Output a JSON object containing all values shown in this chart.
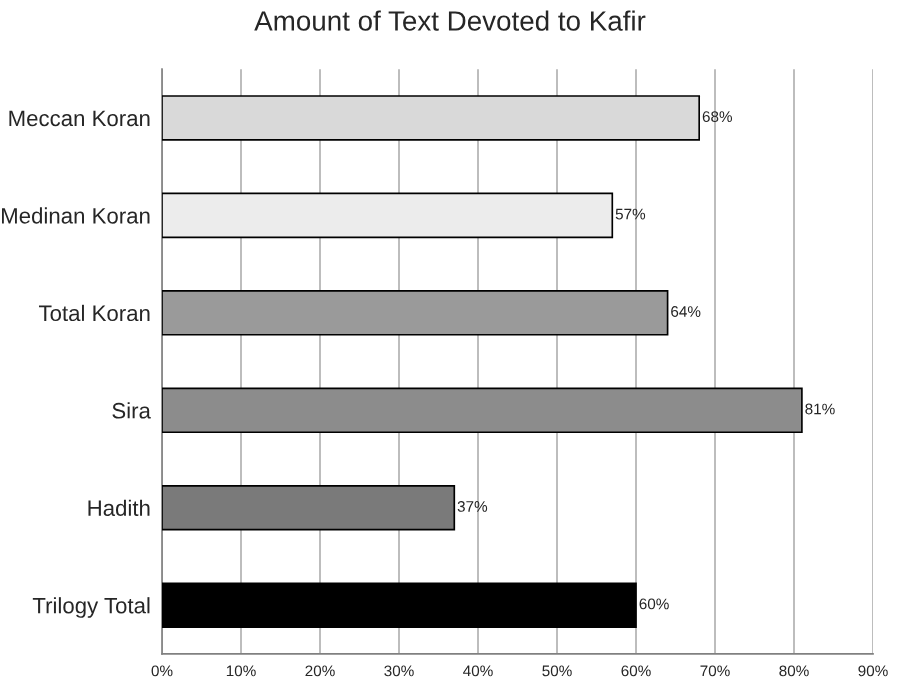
{
  "chart_data": {
    "type": "bar",
    "orientation": "horizontal",
    "title": "Amount of Text Devoted to Kafir",
    "categories": [
      "Meccan Koran",
      "Medinan Koran",
      "Total Koran",
      "Sira",
      "Hadith",
      "Trilogy Total"
    ],
    "values": [
      68,
      57,
      64,
      81,
      37,
      60
    ],
    "colors": [
      "#d9d9d9",
      "#ececec",
      "#9a9a9a",
      "#8c8c8c",
      "#7a7a7a",
      "#000000"
    ],
    "value_labels": [
      "68%",
      "57%",
      "64%",
      "81%",
      "37%",
      "60%"
    ],
    "xlim": [
      0,
      90
    ],
    "xticks": [
      {
        "value": 0,
        "label": "0%"
      },
      {
        "value": 10,
        "label": "10%"
      },
      {
        "value": 20,
        "label": "20%"
      },
      {
        "value": 30,
        "label": "30%"
      },
      {
        "value": 40,
        "label": "40%"
      },
      {
        "value": 50,
        "label": "50%"
      },
      {
        "value": 60,
        "label": "60%"
      },
      {
        "value": 70,
        "label": "70%"
      },
      {
        "value": 80,
        "label": "80%"
      },
      {
        "value": 90,
        "label": "90%"
      }
    ],
    "grid": "x",
    "legend": false
  }
}
